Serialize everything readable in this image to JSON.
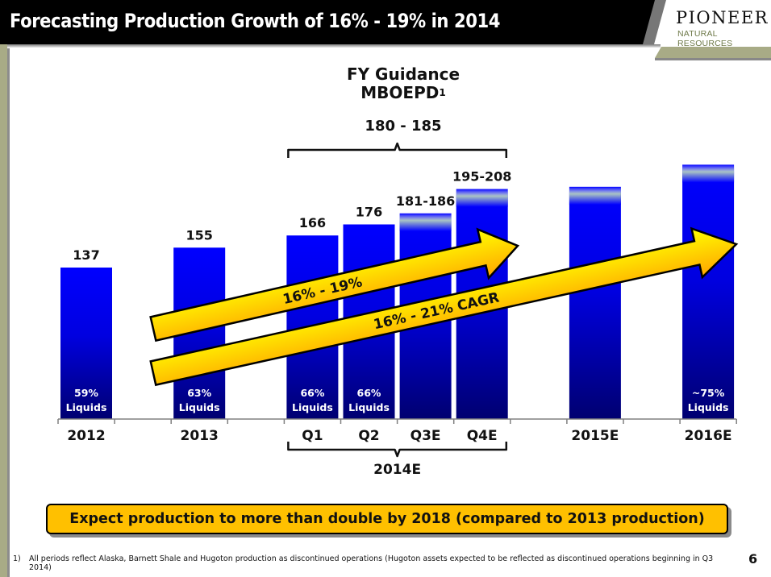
{
  "header": {
    "title": "Forecasting Production Growth of 16% - 19% in 2014",
    "logo_name": "PIONEER",
    "logo_sub": "NATURAL RESOURCES"
  },
  "guidance": {
    "title": "FY Guidance",
    "unit": "MBOEPD",
    "unit_footnote": "1",
    "range": "180 - 185"
  },
  "chart_data": {
    "type": "bar",
    "title": "FY Guidance MBOEPD",
    "categories": [
      "2012",
      "2013",
      "Q1",
      "Q2",
      "Q3E",
      "Q4E",
      "2015E",
      "2016E"
    ],
    "group_labels": [
      {
        "label": "2014E",
        "categories": [
          "Q1",
          "Q2",
          "Q3E",
          "Q4E"
        ]
      }
    ],
    "values": [
      137,
      155,
      166,
      176,
      186,
      208,
      210,
      230
    ],
    "value_ranges": [
      null,
      null,
      null,
      null,
      [
        181,
        186
      ],
      [
        195,
        208
      ],
      null,
      null
    ],
    "data_labels": [
      "137",
      "155",
      "166",
      "176",
      "181-186",
      "195-208",
      "",
      ""
    ],
    "liquids_labels": [
      "59%\nLiquids",
      "63%\nLiquids",
      "66%\nLiquids",
      "66%\nLiquids",
      "",
      "",
      "",
      "~75%\nLiquids"
    ],
    "faded_top": [
      false,
      false,
      false,
      false,
      true,
      true,
      true,
      true
    ],
    "ylim": [
      0,
      240
    ],
    "grid": false,
    "xlabel": "",
    "ylabel": "",
    "annotations": [
      {
        "text": "16% - 19%",
        "type": "arrow"
      },
      {
        "text": "16% - 21% CAGR",
        "type": "arrow"
      }
    ],
    "colors": {
      "bar_top": "#0000ff",
      "bar_bottom": "#000070",
      "arrow_top": "#ffff00",
      "arrow_bottom": "#ffa500"
    }
  },
  "callout": {
    "text": "Expect production to more than double by 2018 (compared to 2013 production)"
  },
  "footnote": {
    "number": "1)",
    "text": "All periods reflect Alaska, Barnett Shale and Hugoton production as discontinued operations (Hugoton assets expected to be reflected as discontinued operations beginning in Q3 2014)"
  },
  "page_number": "6"
}
